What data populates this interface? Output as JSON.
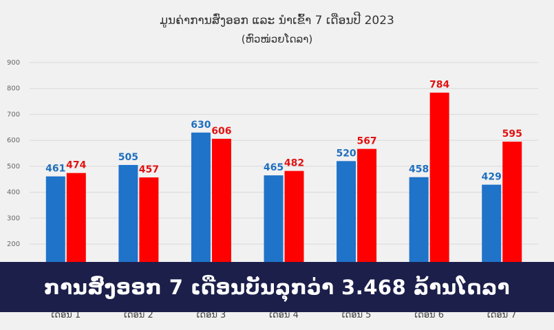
{
  "colors": {
    "export": "#1f73c9",
    "import": "#ff0000",
    "export_label": "#1f6fbf",
    "import_label": "#e11212",
    "banner_bg": "#1c1f4a",
    "background": "#f1f1f1"
  },
  "banner": {
    "text": "ການສົ່ງອອກ 7 ເດືອນບັນລຸກວ່າ 3.468 ລ້ານໂດລາ"
  },
  "chart_data": {
    "type": "bar",
    "title": "ມູນຄ່າການສົ່ງອອກ ແລະ ນຳເຂົ້າ 7 ເດືອນປີ 2023",
    "subtitle": "(ຫົວໜ່ວຍໂດລາ)",
    "categories": [
      "ເດືອນ 1",
      "ເດືອນ 2",
      "ເດືອນ 3",
      "ເດືອນ 4",
      "ເດືອນ 5",
      "ເດືອນ 6",
      "ເດືອນ 7"
    ],
    "series": [
      {
        "values": [
          461,
          505,
          630,
          465,
          520,
          458,
          429
        ],
        "color": "#1f73c9"
      },
      {
        "values": [
          474,
          457,
          606,
          482,
          567,
          784,
          595
        ],
        "color": "#ff0000"
      }
    ],
    "yticks": [
      "200",
      "300",
      "400",
      "500",
      "600",
      "700",
      "800",
      "900"
    ],
    "ylim": [
      0,
      900
    ],
    "grid": true,
    "legend": "none"
  }
}
